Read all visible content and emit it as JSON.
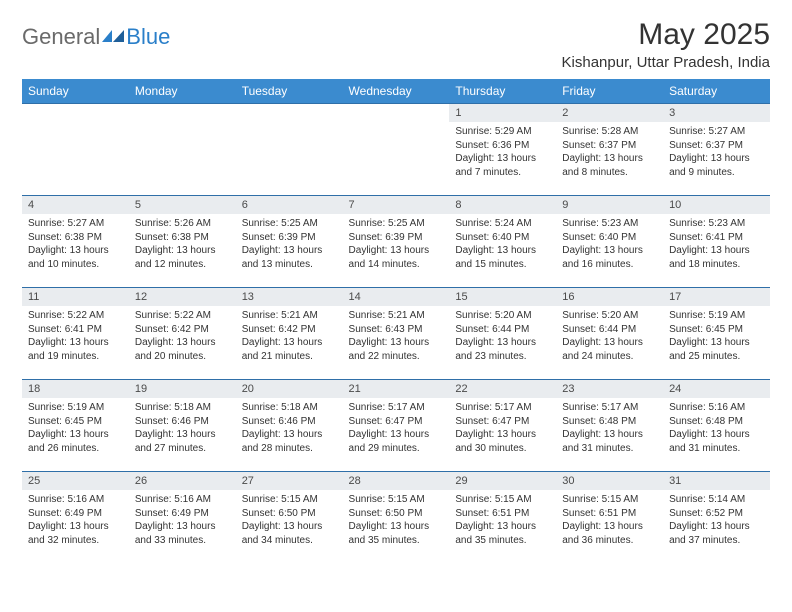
{
  "logo": {
    "text1": "General",
    "text2": "Blue"
  },
  "title": "May 2025",
  "location": "Kishanpur, Uttar Pradesh, India",
  "colors": {
    "header_bg": "#3b8bcf",
    "header_text": "#ffffff",
    "daynum_bg": "#e9ecef",
    "border": "#2f6fa8",
    "logo_gray": "#6a6a6a",
    "logo_blue": "#2a7fc9"
  },
  "dayNames": [
    "Sunday",
    "Monday",
    "Tuesday",
    "Wednesday",
    "Thursday",
    "Friday",
    "Saturday"
  ],
  "weeks": [
    [
      null,
      null,
      null,
      null,
      {
        "n": "1",
        "sr": "5:29 AM",
        "ss": "6:36 PM",
        "dl": "13 hours and 7 minutes."
      },
      {
        "n": "2",
        "sr": "5:28 AM",
        "ss": "6:37 PM",
        "dl": "13 hours and 8 minutes."
      },
      {
        "n": "3",
        "sr": "5:27 AM",
        "ss": "6:37 PM",
        "dl": "13 hours and 9 minutes."
      }
    ],
    [
      {
        "n": "4",
        "sr": "5:27 AM",
        "ss": "6:38 PM",
        "dl": "13 hours and 10 minutes."
      },
      {
        "n": "5",
        "sr": "5:26 AM",
        "ss": "6:38 PM",
        "dl": "13 hours and 12 minutes."
      },
      {
        "n": "6",
        "sr": "5:25 AM",
        "ss": "6:39 PM",
        "dl": "13 hours and 13 minutes."
      },
      {
        "n": "7",
        "sr": "5:25 AM",
        "ss": "6:39 PM",
        "dl": "13 hours and 14 minutes."
      },
      {
        "n": "8",
        "sr": "5:24 AM",
        "ss": "6:40 PM",
        "dl": "13 hours and 15 minutes."
      },
      {
        "n": "9",
        "sr": "5:23 AM",
        "ss": "6:40 PM",
        "dl": "13 hours and 16 minutes."
      },
      {
        "n": "10",
        "sr": "5:23 AM",
        "ss": "6:41 PM",
        "dl": "13 hours and 18 minutes."
      }
    ],
    [
      {
        "n": "11",
        "sr": "5:22 AM",
        "ss": "6:41 PM",
        "dl": "13 hours and 19 minutes."
      },
      {
        "n": "12",
        "sr": "5:22 AM",
        "ss": "6:42 PM",
        "dl": "13 hours and 20 minutes."
      },
      {
        "n": "13",
        "sr": "5:21 AM",
        "ss": "6:42 PM",
        "dl": "13 hours and 21 minutes."
      },
      {
        "n": "14",
        "sr": "5:21 AM",
        "ss": "6:43 PM",
        "dl": "13 hours and 22 minutes."
      },
      {
        "n": "15",
        "sr": "5:20 AM",
        "ss": "6:44 PM",
        "dl": "13 hours and 23 minutes."
      },
      {
        "n": "16",
        "sr": "5:20 AM",
        "ss": "6:44 PM",
        "dl": "13 hours and 24 minutes."
      },
      {
        "n": "17",
        "sr": "5:19 AM",
        "ss": "6:45 PM",
        "dl": "13 hours and 25 minutes."
      }
    ],
    [
      {
        "n": "18",
        "sr": "5:19 AM",
        "ss": "6:45 PM",
        "dl": "13 hours and 26 minutes."
      },
      {
        "n": "19",
        "sr": "5:18 AM",
        "ss": "6:46 PM",
        "dl": "13 hours and 27 minutes."
      },
      {
        "n": "20",
        "sr": "5:18 AM",
        "ss": "6:46 PM",
        "dl": "13 hours and 28 minutes."
      },
      {
        "n": "21",
        "sr": "5:17 AM",
        "ss": "6:47 PM",
        "dl": "13 hours and 29 minutes."
      },
      {
        "n": "22",
        "sr": "5:17 AM",
        "ss": "6:47 PM",
        "dl": "13 hours and 30 minutes."
      },
      {
        "n": "23",
        "sr": "5:17 AM",
        "ss": "6:48 PM",
        "dl": "13 hours and 31 minutes."
      },
      {
        "n": "24",
        "sr": "5:16 AM",
        "ss": "6:48 PM",
        "dl": "13 hours and 31 minutes."
      }
    ],
    [
      {
        "n": "25",
        "sr": "5:16 AM",
        "ss": "6:49 PM",
        "dl": "13 hours and 32 minutes."
      },
      {
        "n": "26",
        "sr": "5:16 AM",
        "ss": "6:49 PM",
        "dl": "13 hours and 33 minutes."
      },
      {
        "n": "27",
        "sr": "5:15 AM",
        "ss": "6:50 PM",
        "dl": "13 hours and 34 minutes."
      },
      {
        "n": "28",
        "sr": "5:15 AM",
        "ss": "6:50 PM",
        "dl": "13 hours and 35 minutes."
      },
      {
        "n": "29",
        "sr": "5:15 AM",
        "ss": "6:51 PM",
        "dl": "13 hours and 35 minutes."
      },
      {
        "n": "30",
        "sr": "5:15 AM",
        "ss": "6:51 PM",
        "dl": "13 hours and 36 minutes."
      },
      {
        "n": "31",
        "sr": "5:14 AM",
        "ss": "6:52 PM",
        "dl": "13 hours and 37 minutes."
      }
    ]
  ],
  "labels": {
    "sunrise": "Sunrise:",
    "sunset": "Sunset:",
    "daylight": "Daylight:"
  }
}
